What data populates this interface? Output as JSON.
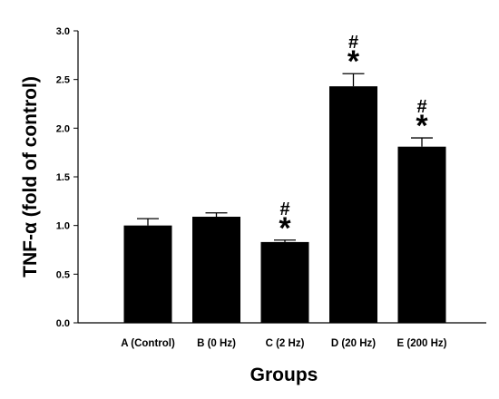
{
  "chart_data": {
    "type": "bar",
    "categories": [
      "A (Control)",
      "B (0 Hz)",
      "C (2 Hz)",
      "D (20 Hz)",
      "E (200 Hz)"
    ],
    "values": [
      1.0,
      1.09,
      0.83,
      2.43,
      1.81
    ],
    "error": [
      0.07,
      0.04,
      0.02,
      0.13,
      0.09
    ],
    "significance": [
      {
        "category": "C (2 Hz)",
        "marks": [
          "#",
          "*"
        ]
      },
      {
        "category": "D (20 Hz)",
        "marks": [
          "#",
          "*"
        ]
      },
      {
        "category": "E (200 Hz)",
        "marks": [
          "#",
          "*"
        ]
      }
    ],
    "xlabel": "Groups",
    "ylabel": "TNF-α (fold of control)",
    "ylim": [
      0,
      3.0
    ],
    "yticks": [
      "0.0",
      "0.5",
      "1.0",
      "1.5",
      "2.0",
      "2.5",
      "3.0"
    ],
    "grid": false,
    "bar_color": "#000000"
  }
}
